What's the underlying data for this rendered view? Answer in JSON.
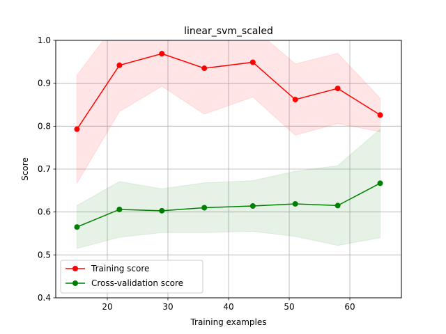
{
  "chart_data": {
    "type": "line",
    "title": "linear_svm_scaled",
    "xlabel": "Training examples",
    "ylabel": "Score",
    "xlim": [
      11.5,
      68.5
    ],
    "ylim": [
      0.4,
      1.0
    ],
    "xticks": [
      20,
      30,
      40,
      50,
      60
    ],
    "yticks": [
      0.4,
      0.5,
      0.6,
      0.7,
      0.8,
      0.9,
      1.0
    ],
    "grid": true,
    "legend_position": "lower-left",
    "x": [
      15,
      22,
      29,
      36,
      44,
      51,
      58,
      65
    ],
    "series": [
      {
        "name": "Training score",
        "color": "#ff0000",
        "band_color": "#ff0000",
        "values": [
          0.793,
          0.942,
          0.969,
          0.935,
          0.949,
          0.862,
          0.888,
          0.826
        ],
        "upper": [
          0.919,
          1.05,
          1.05,
          1.043,
          1.03,
          0.945,
          0.97,
          0.865
        ],
        "lower": [
          0.667,
          0.834,
          0.893,
          0.828,
          0.868,
          0.779,
          0.806,
          0.787
        ]
      },
      {
        "name": "Cross-validation score",
        "color": "#008000",
        "band_color": "#008000",
        "values": [
          0.565,
          0.606,
          0.603,
          0.61,
          0.614,
          0.619,
          0.615,
          0.667
        ],
        "upper": [
          0.615,
          0.671,
          0.654,
          0.668,
          0.673,
          0.695,
          0.708,
          0.793
        ],
        "lower": [
          0.515,
          0.541,
          0.552,
          0.552,
          0.555,
          0.543,
          0.522,
          0.54
        ]
      }
    ]
  }
}
